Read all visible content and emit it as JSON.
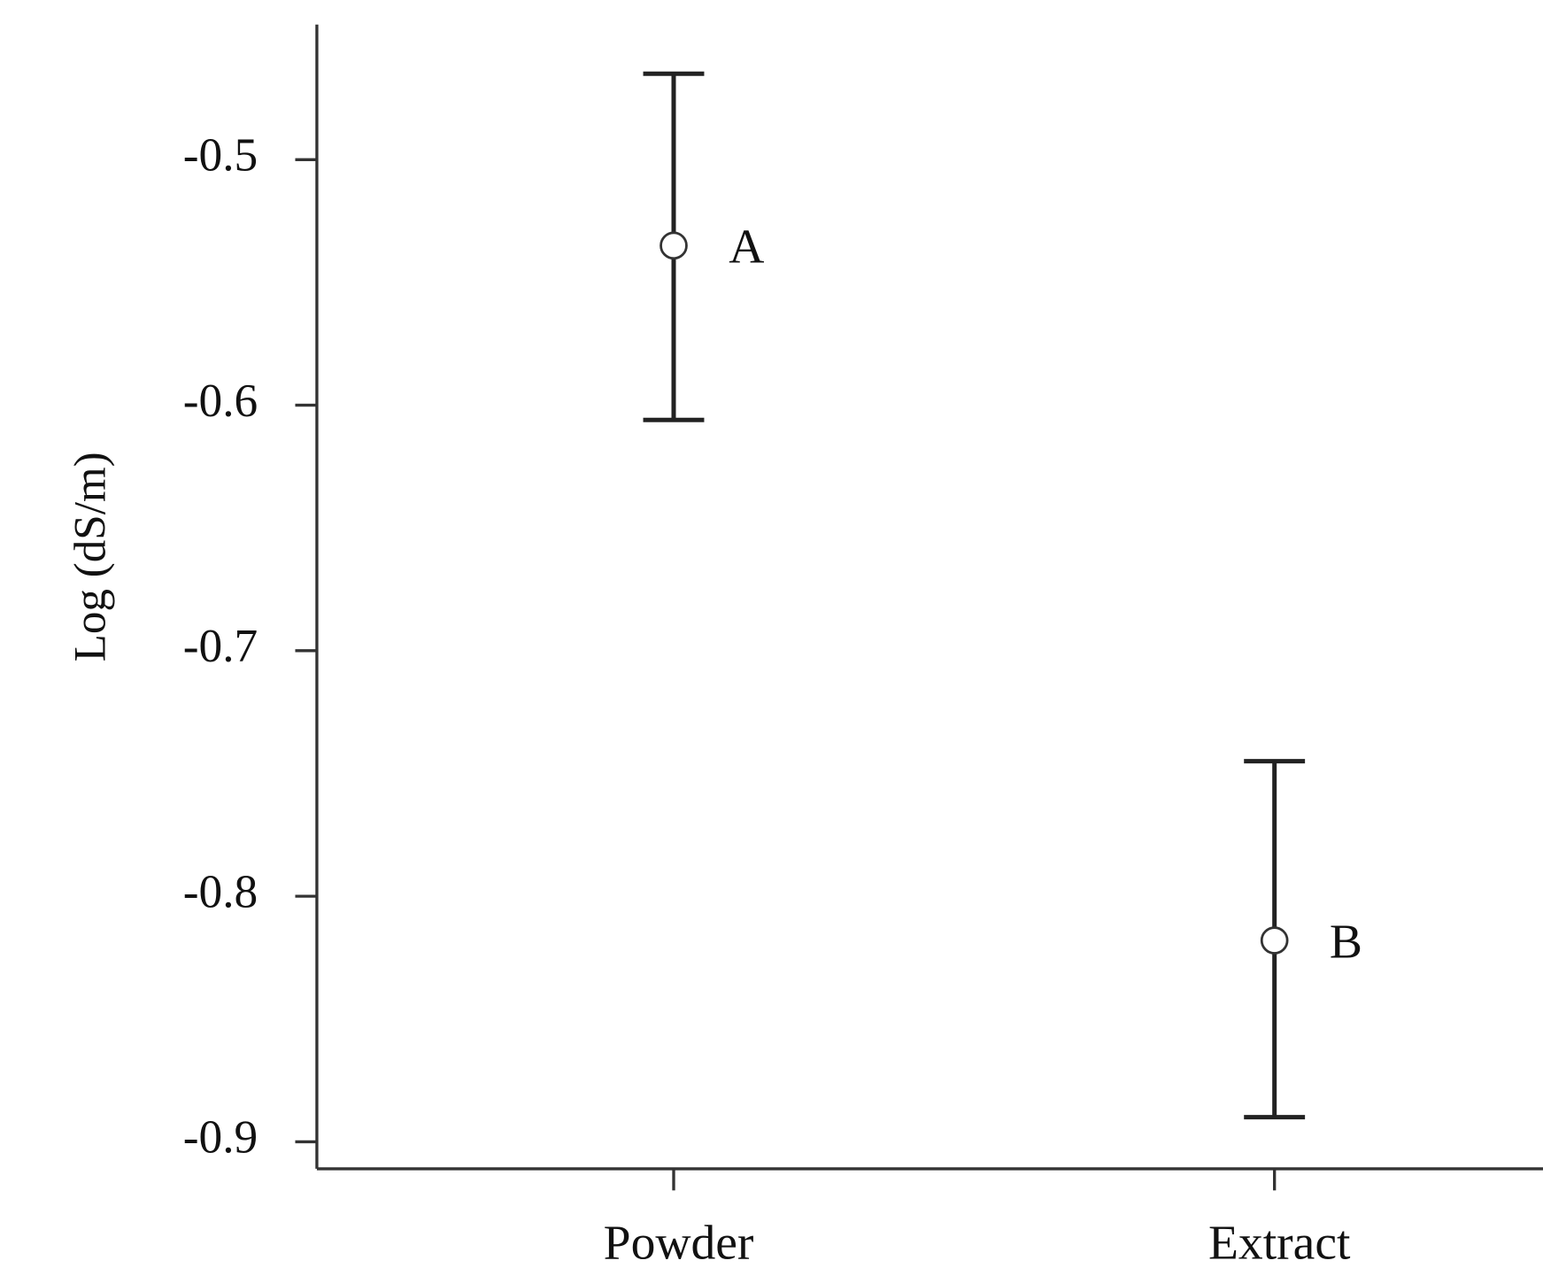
{
  "chart_data": {
    "type": "errorbar",
    "y_label": "Log (dS/m)",
    "categories": [
      "Powder",
      "Extract"
    ],
    "series": [
      {
        "color": "#222222",
        "values": [
          -0.535,
          -0.818
        ],
        "upper": [
          -0.465,
          -0.745
        ],
        "lower": [
          -0.606,
          -0.89
        ],
        "annotations": [
          "A",
          "B"
        ]
      }
    ],
    "ylim": [
      -0.911,
      -0.445
    ],
    "yticks": [
      {
        "value": -0.5,
        "label": "-0.5"
      },
      {
        "value": -0.6,
        "label": "-0.6"
      },
      {
        "value": -0.7,
        "label": "-0.7"
      },
      {
        "value": -0.8,
        "label": "-0.8"
      },
      {
        "value": -0.9,
        "label": "-0.9"
      }
    ],
    "grid": false
  }
}
